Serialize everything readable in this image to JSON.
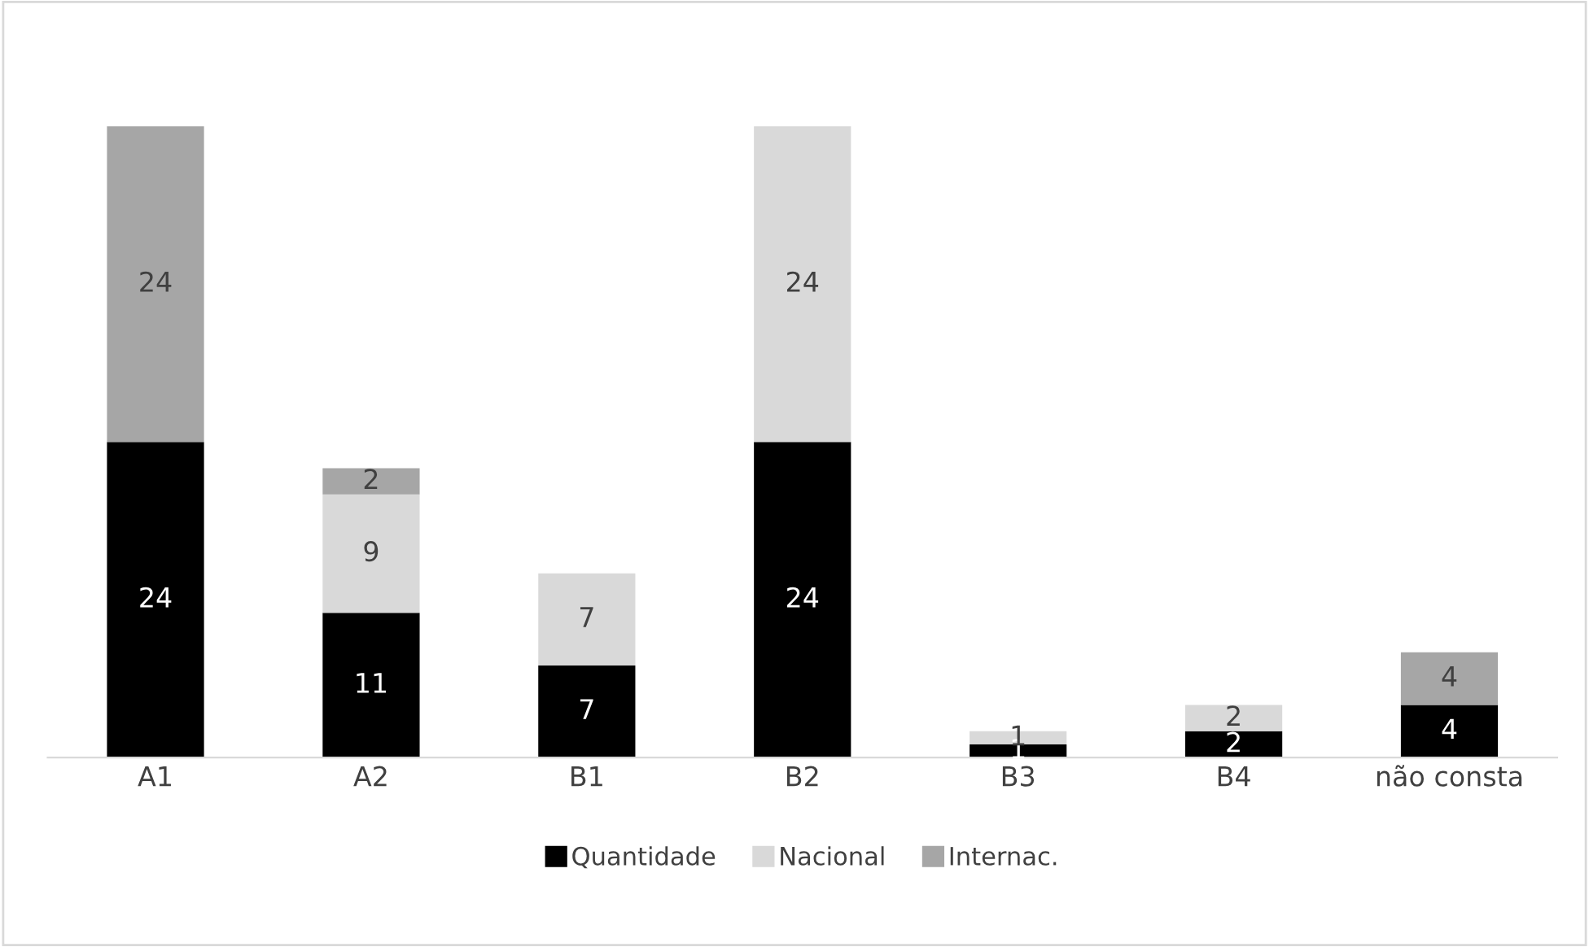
{
  "chart_data": {
    "type": "bar",
    "stacked": true,
    "categories": [
      "A1",
      "A2",
      "B1",
      "B2",
      "B3",
      "B4",
      "não consta"
    ],
    "series": [
      {
        "name": "Quantidade",
        "color": "#000000",
        "values": [
          24,
          11,
          7,
          24,
          1,
          2,
          4
        ]
      },
      {
        "name": "Nacional",
        "color": "#d9d9d9",
        "values": [
          null,
          9,
          7,
          24,
          1,
          2,
          null
        ]
      },
      {
        "name": "Internac.",
        "color": "#a6a6a6",
        "values": [
          24,
          2,
          null,
          null,
          null,
          null,
          4
        ]
      }
    ],
    "data_labels": true,
    "legend": "bottom",
    "grid": false
  }
}
